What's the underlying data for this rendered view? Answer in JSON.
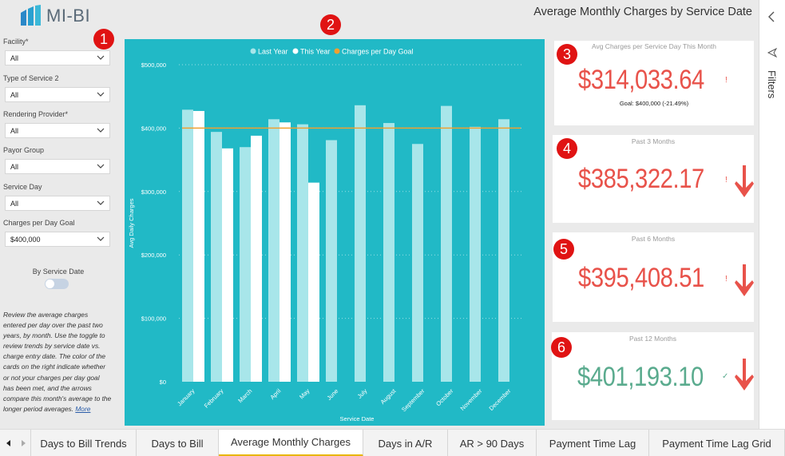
{
  "app": {
    "logo_text": "MI-BI",
    "report_title": "Average Monthly Charges by Service Date"
  },
  "slicers": [
    {
      "label": "Facility*",
      "value": "All"
    },
    {
      "label": "Type of Service 2",
      "value": "All"
    },
    {
      "label": "Rendering Provider*",
      "value": "All"
    },
    {
      "label": "Payor Group",
      "value": "All"
    },
    {
      "label": "Service Day",
      "value": "All"
    },
    {
      "label": "Charges per Day Goal",
      "value": "$400,000"
    }
  ],
  "toggle": {
    "label": "By Service Date",
    "on": false
  },
  "description": {
    "text": "Review the average charges entered per day over the past two years, by month. Use the toggle to review trends by service date vs. charge entry date. The color of the cards on the right indicate whether or not your charges per day goal has been met, and the arrows compare this month's average to the longer period averages.",
    "more": "More"
  },
  "chart_data": {
    "type": "bar",
    "legend": [
      "Last Year",
      "This Year",
      "Charges per Day Goal"
    ],
    "legend_position": "top-center",
    "xlabel": "Service Date",
    "ylabel": "Avg Daily Charges",
    "ylim": [
      0,
      500000
    ],
    "yticks": [
      "$0",
      "$100,000",
      "$200,000",
      "$300,000",
      "$400,000",
      "$500,000"
    ],
    "categories": [
      "January",
      "February",
      "March",
      "April",
      "May",
      "June",
      "July",
      "August",
      "September",
      "October",
      "November",
      "December"
    ],
    "series": [
      {
        "name": "Last Year",
        "values": [
          429000,
          394000,
          370000,
          414000,
          406000,
          381000,
          436000,
          408000,
          375000,
          435000,
          402000,
          414000
        ]
      },
      {
        "name": "This Year",
        "values": [
          427000,
          368000,
          388000,
          409000,
          314000,
          null,
          null,
          null,
          null,
          null,
          null,
          null
        ]
      }
    ],
    "goal_line": {
      "name": "Charges per Day Goal",
      "value": 400000
    },
    "grid": true,
    "colors": {
      "background": "#21b9c6",
      "last_year": "#a8e6ea",
      "this_year": "#ffffff",
      "goal": "#f0a030"
    }
  },
  "cards": [
    {
      "title": "Avg Charges per Service Day This Month",
      "value": "$314,033.64",
      "goal": "Goal: $400,000 (-21.49%)",
      "color": "#e8524a",
      "indicator": "!",
      "arrow": "none"
    },
    {
      "title": "Past 3 Months",
      "value": "$385,322.17",
      "color": "#e8524a",
      "indicator": "!",
      "arrow": "down"
    },
    {
      "title": "Past 6 Months",
      "value": "$395,408.51",
      "color": "#e8524a",
      "indicator": "!",
      "arrow": "down"
    },
    {
      "title": "Past 12 Months",
      "value": "$401,193.10",
      "color": "#5aab8e",
      "indicator": "✓",
      "arrow": "down"
    }
  ],
  "badges": [
    "1",
    "2",
    "3",
    "4",
    "5",
    "6"
  ],
  "filters_pane": {
    "label": "Filters"
  },
  "tabs": [
    {
      "label": "Days to Bill Trends",
      "active": false
    },
    {
      "label": "Days to Bill",
      "active": false
    },
    {
      "label": "Average Monthly Charges",
      "active": true
    },
    {
      "label": "Days in A/R",
      "active": false
    },
    {
      "label": "AR > 90 Days",
      "active": false
    },
    {
      "label": "Payment Time Lag",
      "active": false
    },
    {
      "label": "Payment Time Lag Grid",
      "active": false
    }
  ],
  "colors": {
    "arrow": "#e8524a",
    "badge": "#e01313",
    "active_tab_underline": "#e8b500"
  }
}
